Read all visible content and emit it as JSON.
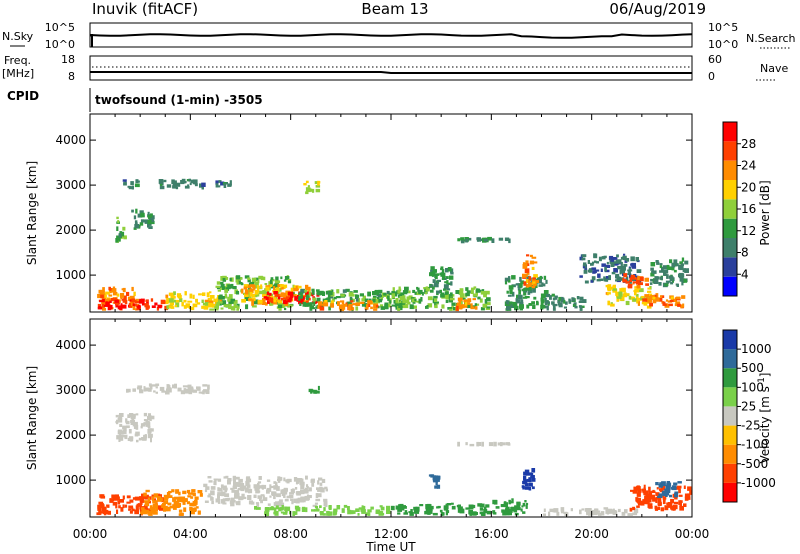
{
  "header": {
    "station": "Inuvik (fitACF)",
    "beam": "Beam 13",
    "date": "06/Aug/2019"
  },
  "sky_panel": {
    "left_label": "N.Sky",
    "left_ticks": [
      "10^5",
      "10^0"
    ],
    "right_ticks": [
      "10^5",
      "10^0"
    ],
    "right_label": "N.Search"
  },
  "freq_panel": {
    "left_label_1": "Freq.",
    "left_label_2": "[MHz]",
    "left_ticks": [
      "18",
      "8"
    ],
    "right_ticks": [
      "60",
      "0"
    ],
    "right_label": "Nave"
  },
  "cpid": {
    "label": "CPID",
    "text": "twofsound (1-min) -3505"
  },
  "colors": {
    "power_scale": [
      "#0000ff",
      "#2a3f9c",
      "#3e7f6a",
      "#2f9a3e",
      "#8fcf3a",
      "#ffd000",
      "#ff8c00",
      "#ff4000",
      "#ff0000"
    ],
    "velocity_scale": [
      "#ff0000",
      "#ff4000",
      "#ff8c00",
      "#ffc000",
      "#c8c8c0",
      "#7ad04a",
      "#2f9a3e",
      "#2f6a9a",
      "#1a3aa8"
    ]
  },
  "chart_data": [
    {
      "type": "heatmap",
      "title": "Power",
      "ylabel": "Slant Range [km]",
      "xlabel": "Time UT",
      "x_ticks": [
        "00:00",
        "04:00",
        "08:00",
        "12:00",
        "16:00",
        "20:00",
        "00:00"
      ],
      "y_ticks": [
        "1000",
        "2000",
        "3000",
        "4000"
      ],
      "ylim": [
        180,
        4580
      ],
      "xlim_hours": [
        0,
        24
      ],
      "colorbar_label": "Power [dB]",
      "colorbar_ticks": [
        "28",
        "24",
        "20",
        "16",
        "12",
        "8",
        "4"
      ],
      "colorbar_range": [
        0,
        30
      ],
      "regions": [
        {
          "t": [
            0.2,
            2.0
          ],
          "r": [
            200,
            750
          ],
          "v": 22
        },
        {
          "t": [
            0.3,
            3.2
          ],
          "r": [
            200,
            500
          ],
          "v": 27
        },
        {
          "t": [
            3.0,
            5.3
          ],
          "r": [
            200,
            650
          ],
          "v": 18
        },
        {
          "t": [
            5.0,
            8.2
          ],
          "r": [
            200,
            1000
          ],
          "v": 14
        },
        {
          "t": [
            6.0,
            8.8
          ],
          "r": [
            300,
            800
          ],
          "v": 20
        },
        {
          "t": [
            6.8,
            9.2
          ],
          "r": [
            350,
            650
          ],
          "v": 28
        },
        {
          "t": [
            8.2,
            12.5
          ],
          "r": [
            200,
            700
          ],
          "v": 12
        },
        {
          "t": [
            9.0,
            11.5
          ],
          "r": [
            200,
            450
          ],
          "v": 22
        },
        {
          "t": [
            12.0,
            16.0
          ],
          "r": [
            200,
            750
          ],
          "v": 13
        },
        {
          "t": [
            13.5,
            14.5
          ],
          "r": [
            500,
            1200
          ],
          "v": 10
        },
        {
          "t": [
            14.5,
            15.5
          ],
          "r": [
            200,
            500
          ],
          "v": 22
        },
        {
          "t": [
            14.5,
            16.8
          ],
          "r": [
            1700,
            1850
          ],
          "v": 9
        },
        {
          "t": [
            16.5,
            18.3
          ],
          "r": [
            200,
            1000
          ],
          "v": 11
        },
        {
          "t": [
            17.2,
            17.9
          ],
          "r": [
            700,
            1500
          ],
          "v": 22
        },
        {
          "t": [
            18.0,
            19.8
          ],
          "r": [
            200,
            600
          ],
          "v": 9
        },
        {
          "t": [
            19.5,
            22.0
          ],
          "r": [
            800,
            1500
          ],
          "v": 7
        },
        {
          "t": [
            20.5,
            22.5
          ],
          "r": [
            300,
            800
          ],
          "v": 18
        },
        {
          "t": [
            21.2,
            22.3
          ],
          "r": [
            700,
            1050
          ],
          "v": 24
        },
        {
          "t": [
            22.0,
            23.8
          ],
          "r": [
            250,
            600
          ],
          "v": 22
        },
        {
          "t": [
            22.3,
            23.9
          ],
          "r": [
            700,
            1400
          ],
          "v": 9
        },
        {
          "t": [
            1.0,
            1.5
          ],
          "r": [
            1700,
            2300
          ],
          "v": 12
        },
        {
          "t": [
            1.6,
            2.6
          ],
          "r": [
            2000,
            2500
          ],
          "v": 9
        },
        {
          "t": [
            1.3,
            2.0
          ],
          "r": [
            2900,
            3150
          ],
          "v": 8
        },
        {
          "t": [
            2.7,
            4.7
          ],
          "r": [
            2900,
            3150
          ],
          "v": 8
        },
        {
          "t": [
            8.5,
            9.2
          ],
          "r": [
            2800,
            3100
          ],
          "v": 16
        },
        {
          "t": [
            5.0,
            5.7
          ],
          "r": [
            2900,
            3150
          ],
          "v": 8
        }
      ]
    },
    {
      "type": "heatmap",
      "title": "Velocity",
      "ylabel": "Slant Range [km]",
      "xlabel": "Time UT",
      "x_ticks": [
        "00:00",
        "04:00",
        "08:00",
        "12:00",
        "16:00",
        "20:00",
        "00:00"
      ],
      "y_ticks": [
        "1000",
        "2000",
        "3000",
        "4000"
      ],
      "ylim": [
        180,
        4580
      ],
      "xlim_hours": [
        0,
        24
      ],
      "colorbar_label": "Velocity [m s^-1]",
      "colorbar_ticks": [
        "1000",
        "500",
        "100",
        "25",
        "-25",
        "-100",
        "-500",
        "-1000"
      ],
      "regions": [
        {
          "t": [
            0.2,
            3.0
          ],
          "r": [
            200,
            700
          ],
          "v": -200
        },
        {
          "t": [
            2.0,
            4.5
          ],
          "r": [
            200,
            800
          ],
          "v": -80
        },
        {
          "t": [
            4.5,
            9.5
          ],
          "r": [
            400,
            1100
          ],
          "v": 0
        },
        {
          "t": [
            6.5,
            12.0
          ],
          "r": [
            200,
            450
          ],
          "v": 60
        },
        {
          "t": [
            12.0,
            16.0
          ],
          "r": [
            200,
            500
          ],
          "v": 150
        },
        {
          "t": [
            13.5,
            14.0
          ],
          "r": [
            800,
            1200
          ],
          "v": 600
        },
        {
          "t": [
            14.5,
            16.8
          ],
          "r": [
            1750,
            1850
          ],
          "v": 0
        },
        {
          "t": [
            16.0,
            17.5
          ],
          "r": [
            200,
            600
          ],
          "v": 250
        },
        {
          "t": [
            17.2,
            17.8
          ],
          "r": [
            700,
            1300
          ],
          "v": 700
        },
        {
          "t": [
            18.0,
            22.0
          ],
          "r": [
            200,
            400
          ],
          "v": 0
        },
        {
          "t": [
            21.5,
            24.0
          ],
          "r": [
            300,
            900
          ],
          "v": -250
        },
        {
          "t": [
            22.5,
            23.6
          ],
          "r": [
            600,
            1000
          ],
          "v": 400
        },
        {
          "t": [
            1.0,
            2.6
          ],
          "r": [
            1800,
            2500
          ],
          "v": 0
        },
        {
          "t": [
            1.3,
            4.8
          ],
          "r": [
            2900,
            3150
          ],
          "v": 0
        },
        {
          "t": [
            8.7,
            9.2
          ],
          "r": [
            2900,
            3100
          ],
          "v": 150
        }
      ]
    }
  ]
}
